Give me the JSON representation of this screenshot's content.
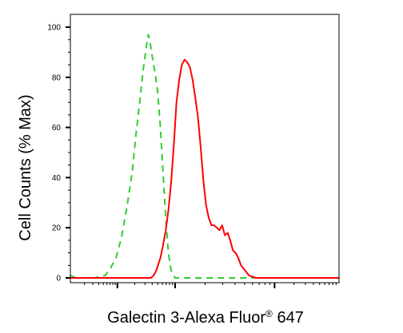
{
  "chart_data": {
    "type": "line",
    "xlabel": "Galectin 3-Alexa Fluor® 647",
    "xlabel_main": "Galectin 3-Alexa Fluor",
    "xlabel_sup": "®",
    "xlabel_tail": " 647",
    "ylabel": "Cell Counts (% Max)",
    "x_scale": "log",
    "x_ticks_labeled": false,
    "ylim": [
      0,
      100
    ],
    "yticks": [
      "0",
      "20",
      "40",
      "60",
      "80",
      "100"
    ],
    "grid": false,
    "series": [
      {
        "color": "#33cc33",
        "style": "dashed",
        "points": [
          [
            0.0,
            1
          ],
          [
            0.02,
            0
          ],
          [
            0.09,
            0
          ],
          [
            0.13,
            1
          ],
          [
            0.15,
            4
          ],
          [
            0.17,
            8
          ],
          [
            0.19,
            16
          ],
          [
            0.21,
            28
          ],
          [
            0.23,
            42
          ],
          [
            0.245,
            58
          ],
          [
            0.26,
            72
          ],
          [
            0.27,
            82
          ],
          [
            0.28,
            90
          ],
          [
            0.285,
            94
          ],
          [
            0.29,
            97
          ],
          [
            0.295,
            95
          ],
          [
            0.305,
            88
          ],
          [
            0.315,
            82
          ],
          [
            0.325,
            74
          ],
          [
            0.335,
            60
          ],
          [
            0.345,
            42
          ],
          [
            0.355,
            24
          ],
          [
            0.365,
            10
          ],
          [
            0.375,
            3
          ],
          [
            0.39,
            0
          ],
          [
            1.0,
            0
          ]
        ]
      },
      {
        "color": "#ff0000",
        "style": "solid",
        "points": [
          [
            0.0,
            0
          ],
          [
            0.3,
            0
          ],
          [
            0.31,
            1
          ],
          [
            0.32,
            3
          ],
          [
            0.335,
            8
          ],
          [
            0.345,
            13
          ],
          [
            0.355,
            19
          ],
          [
            0.365,
            27
          ],
          [
            0.375,
            38
          ],
          [
            0.385,
            53
          ],
          [
            0.395,
            70
          ],
          [
            0.405,
            79
          ],
          [
            0.415,
            85
          ],
          [
            0.425,
            87
          ],
          [
            0.435,
            86
          ],
          [
            0.445,
            84
          ],
          [
            0.455,
            79
          ],
          [
            0.465,
            72
          ],
          [
            0.475,
            64
          ],
          [
            0.485,
            52
          ],
          [
            0.495,
            39
          ],
          [
            0.505,
            29
          ],
          [
            0.515,
            24
          ],
          [
            0.525,
            21
          ],
          [
            0.535,
            21
          ],
          [
            0.545,
            20
          ],
          [
            0.555,
            19
          ],
          [
            0.565,
            21
          ],
          [
            0.575,
            17
          ],
          [
            0.585,
            18
          ],
          [
            0.595,
            15
          ],
          [
            0.605,
            11
          ],
          [
            0.615,
            10
          ],
          [
            0.625,
            8
          ],
          [
            0.635,
            5
          ],
          [
            0.65,
            3
          ],
          [
            0.665,
            1
          ],
          [
            0.69,
            0
          ],
          [
            1.0,
            0
          ]
        ]
      }
    ]
  }
}
